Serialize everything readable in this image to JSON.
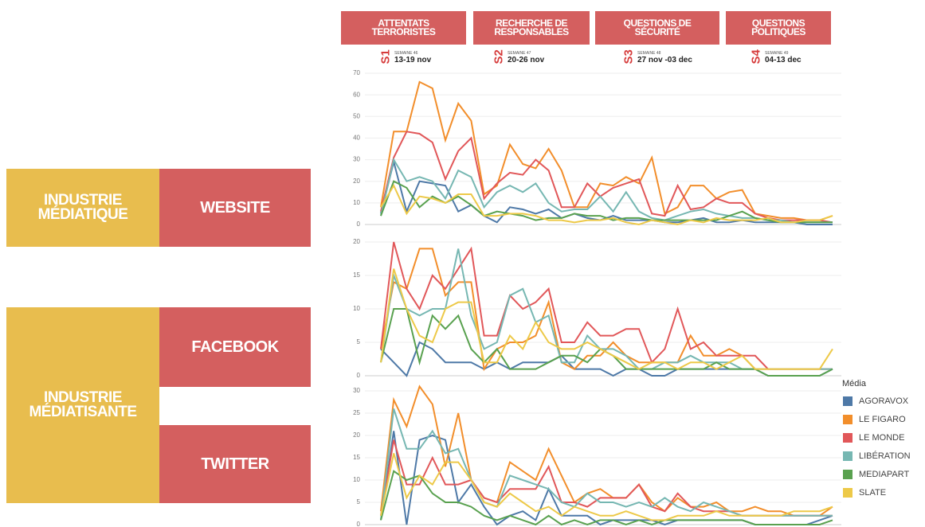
{
  "groups": [
    "INDUSTRIE MÉDIATIQUE",
    "INDUSTRIE MÉDIATISANTE"
  ],
  "header": {
    "sections": [
      {
        "title": "ATTENTATS TERRORISTES",
        "code": "S1",
        "week": "SEMAINE 46",
        "dates": "13-19 nov"
      },
      {
        "title": "RECHERCHE DE RESPONSABLES",
        "code": "S2",
        "week": "SEMAINE 47",
        "dates": "20-26 nov"
      },
      {
        "title": "QUESTIONS DE SÉCURITÉ",
        "code": "S3",
        "week": "SEMAINE 48",
        "dates": "27 nov -03 dec"
      },
      {
        "title": "QUESTIONS POLITIQUES",
        "code": "S4",
        "week": "SEMAINE 49",
        "dates": "04-13 dec"
      }
    ]
  },
  "legend": {
    "title": "Média"
  },
  "chart_data": [
    {
      "type": "line",
      "title": "WEBSITE",
      "grid": true,
      "ylim": [
        0,
        70
      ],
      "yticks": [
        0,
        10,
        20,
        30,
        40,
        50,
        60,
        70
      ],
      "categories": [
        null,
        null,
        null,
        null,
        null,
        null,
        null,
        null,
        null,
        null,
        null,
        null,
        null,
        null,
        null,
        null,
        null,
        null,
        null,
        null,
        null,
        null,
        null,
        null,
        null,
        null,
        null,
        null,
        null,
        null,
        null,
        null,
        null,
        null,
        null,
        null
      ],
      "series": [
        {
          "name": "AGORAVOX",
          "color": "#4e79a7",
          "values": [
            5,
            29,
            6,
            20,
            19,
            18,
            6,
            9,
            4,
            1,
            8,
            7,
            5,
            7,
            3,
            5,
            3,
            2,
            4,
            2,
            2,
            2,
            1,
            1,
            2,
            3,
            1,
            1,
            2,
            1,
            1,
            1,
            1,
            0,
            0,
            0
          ]
        },
        {
          "name": "LE FIGARO",
          "color": "#f28e2b",
          "values": [
            8,
            43,
            43,
            66,
            63,
            39,
            56,
            48,
            14,
            18,
            37,
            28,
            26,
            35,
            25,
            8,
            8,
            19,
            18,
            22,
            19,
            31,
            5,
            8,
            18,
            18,
            12,
            15,
            16,
            5,
            4,
            3,
            3,
            2,
            2,
            4
          ]
        },
        {
          "name": "LE MONDE",
          "color": "#e15759",
          "values": [
            6,
            31,
            43,
            42,
            38,
            21,
            34,
            40,
            12,
            19,
            24,
            23,
            30,
            25,
            8,
            8,
            19,
            13,
            17,
            19,
            21,
            5,
            4,
            18,
            7,
            8,
            12,
            10,
            10,
            5,
            3,
            2,
            2,
            2,
            2,
            1
          ]
        },
        {
          "name": "LIBÉRATION",
          "color": "#76b7b2",
          "values": [
            4,
            30,
            20,
            22,
            20,
            12,
            25,
            22,
            8,
            15,
            18,
            15,
            19,
            10,
            6,
            7,
            7,
            13,
            6,
            15,
            6,
            3,
            2,
            4,
            6,
            7,
            5,
            4,
            3,
            3,
            2,
            2,
            1,
            1,
            1,
            1
          ]
        },
        {
          "name": "MEDIAPART",
          "color": "#59a14f",
          "values": [
            4,
            20,
            17,
            8,
            13,
            10,
            13,
            9,
            4,
            6,
            5,
            4,
            2,
            3,
            3,
            5,
            4,
            4,
            2,
            3,
            3,
            2,
            2,
            2,
            2,
            2,
            2,
            4,
            6,
            3,
            2,
            1,
            1,
            1,
            1,
            1
          ]
        },
        {
          "name": "SLATE",
          "color": "#edc948",
          "values": [
            8,
            18,
            5,
            13,
            12,
            10,
            14,
            14,
            4,
            4,
            5,
            5,
            4,
            2,
            2,
            1,
            2,
            2,
            3,
            1,
            0,
            2,
            1,
            0,
            2,
            1,
            3,
            2,
            2,
            2,
            3,
            1,
            1,
            2,
            2,
            4
          ]
        }
      ]
    },
    {
      "type": "line",
      "title": "FACEBOOK",
      "grid": true,
      "ylim": [
        0,
        20
      ],
      "yticks": [
        0,
        5,
        10,
        15,
        20
      ],
      "categories": [
        null,
        null,
        null,
        null,
        null,
        null,
        null,
        null,
        null,
        null,
        null,
        null,
        null,
        null,
        null,
        null,
        null,
        null,
        null,
        null,
        null,
        null,
        null,
        null,
        null,
        null,
        null,
        null,
        null,
        null,
        null,
        null,
        null,
        null,
        null,
        null
      ],
      "series": [
        {
          "name": "AGORAVOX",
          "color": "#4e79a7",
          "values": [
            4,
            2,
            0,
            5,
            4,
            2,
            2,
            2,
            1,
            2,
            1,
            2,
            2,
            2,
            3,
            1,
            1,
            1,
            0,
            1,
            1,
            0,
            0,
            1,
            1,
            1,
            1,
            1,
            1,
            1,
            0,
            0,
            0,
            0,
            0,
            1
          ]
        },
        {
          "name": "LE FIGARO",
          "color": "#f28e2b",
          "values": [
            4,
            14,
            13,
            19,
            19,
            12,
            14,
            14,
            1,
            4,
            5,
            5,
            6,
            11,
            2,
            1,
            3,
            3,
            5,
            3,
            2,
            2,
            2,
            2,
            6,
            3,
            3,
            4,
            3,
            1,
            1,
            1,
            1,
            1,
            1,
            1
          ]
        },
        {
          "name": "LE MONDE",
          "color": "#e15759",
          "values": [
            4,
            20,
            13,
            10,
            15,
            13,
            16,
            19,
            6,
            6,
            12,
            10,
            11,
            13,
            5,
            5,
            8,
            6,
            6,
            7,
            7,
            2,
            4,
            10,
            4,
            5,
            3,
            3,
            3,
            3,
            1,
            1,
            1,
            1,
            1,
            1
          ]
        },
        {
          "name": "LIBÉRATION",
          "color": "#76b7b2",
          "values": [
            2,
            15,
            10,
            9,
            10,
            10,
            19,
            9,
            4,
            5,
            12,
            13,
            8,
            9,
            2,
            2,
            6,
            4,
            4,
            3,
            1,
            1,
            2,
            2,
            3,
            2,
            2,
            2,
            1,
            1,
            1,
            1,
            1,
            1,
            1,
            1
          ]
        },
        {
          "name": "MEDIAPART",
          "color": "#59a14f",
          "values": [
            2,
            10,
            10,
            2,
            9,
            7,
            9,
            4,
            2,
            4,
            1,
            1,
            1,
            2,
            3,
            3,
            2,
            4,
            3,
            1,
            1,
            1,
            1,
            1,
            1,
            1,
            2,
            1,
            1,
            1,
            0,
            0,
            0,
            0,
            0,
            1
          ]
        },
        {
          "name": "SLATE",
          "color": "#edc948",
          "values": [
            2,
            16,
            10,
            6,
            5,
            10,
            11,
            11,
            2,
            2,
            6,
            4,
            8,
            5,
            4,
            4,
            5,
            4,
            3,
            2,
            1,
            2,
            2,
            1,
            2,
            2,
            1,
            2,
            3,
            1,
            1,
            1,
            1,
            1,
            1,
            4
          ]
        }
      ]
    },
    {
      "type": "line",
      "title": "TWITTER",
      "grid": true,
      "ylim": [
        0,
        30
      ],
      "yticks": [
        0,
        5,
        10,
        15,
        20,
        25,
        30
      ],
      "categories": [
        null,
        null,
        null,
        null,
        null,
        null,
        null,
        null,
        null,
        null,
        null,
        null,
        null,
        null,
        null,
        null,
        null,
        null,
        null,
        null,
        null,
        null,
        null,
        null,
        null,
        null,
        null,
        null,
        null,
        null,
        null,
        null,
        null,
        null,
        null,
        null
      ],
      "series": [
        {
          "name": "AGORAVOX",
          "color": "#4e79a7",
          "values": [
            1,
            21,
            0,
            19,
            20,
            19,
            5,
            9,
            4,
            0,
            2,
            3,
            1,
            8,
            2,
            2,
            2,
            0,
            1,
            1,
            1,
            1,
            0,
            1,
            1,
            1,
            1,
            1,
            1,
            0,
            0,
            0,
            0,
            0,
            1,
            2
          ]
        },
        {
          "name": "LE FIGARO",
          "color": "#f28e2b",
          "values": [
            3,
            28,
            22,
            31,
            27,
            13,
            25,
            10,
            6,
            5,
            14,
            12,
            10,
            17,
            11,
            5,
            7,
            8,
            6,
            6,
            9,
            5,
            3,
            6,
            4,
            4,
            5,
            3,
            3,
            4,
            3,
            3,
            2,
            2,
            2,
            4
          ]
        },
        {
          "name": "LE MONDE",
          "color": "#e15759",
          "values": [
            2,
            19,
            9,
            9,
            15,
            9,
            9,
            10,
            6,
            5,
            8,
            8,
            8,
            13,
            5,
            5,
            4,
            6,
            6,
            6,
            9,
            4,
            3,
            7,
            4,
            3,
            3,
            3,
            2,
            2,
            2,
            2,
            2,
            2,
            2,
            2
          ]
        },
        {
          "name": "LIBÉRATION",
          "color": "#76b7b2",
          "values": [
            1,
            26,
            17,
            17,
            21,
            16,
            17,
            10,
            5,
            4,
            11,
            10,
            9,
            8,
            5,
            4,
            7,
            5,
            5,
            4,
            5,
            4,
            6,
            4,
            3,
            5,
            4,
            3,
            2,
            2,
            2,
            2,
            2,
            2,
            2,
            2
          ]
        },
        {
          "name": "MEDIAPART",
          "color": "#59a14f",
          "values": [
            1,
            12,
            10,
            11,
            7,
            5,
            5,
            4,
            2,
            1,
            2,
            1,
            0,
            2,
            0,
            1,
            0,
            1,
            1,
            0,
            1,
            0,
            1,
            1,
            1,
            1,
            1,
            1,
            1,
            0,
            0,
            0,
            0,
            0,
            0,
            1
          ]
        },
        {
          "name": "SLATE",
          "color": "#edc948",
          "values": [
            2,
            16,
            6,
            11,
            9,
            14,
            14,
            10,
            5,
            4,
            7,
            5,
            3,
            4,
            2,
            4,
            3,
            2,
            2,
            3,
            2,
            1,
            1,
            2,
            2,
            2,
            3,
            2,
            2,
            2,
            2,
            2,
            3,
            3,
            3,
            4
          ]
        }
      ]
    }
  ]
}
